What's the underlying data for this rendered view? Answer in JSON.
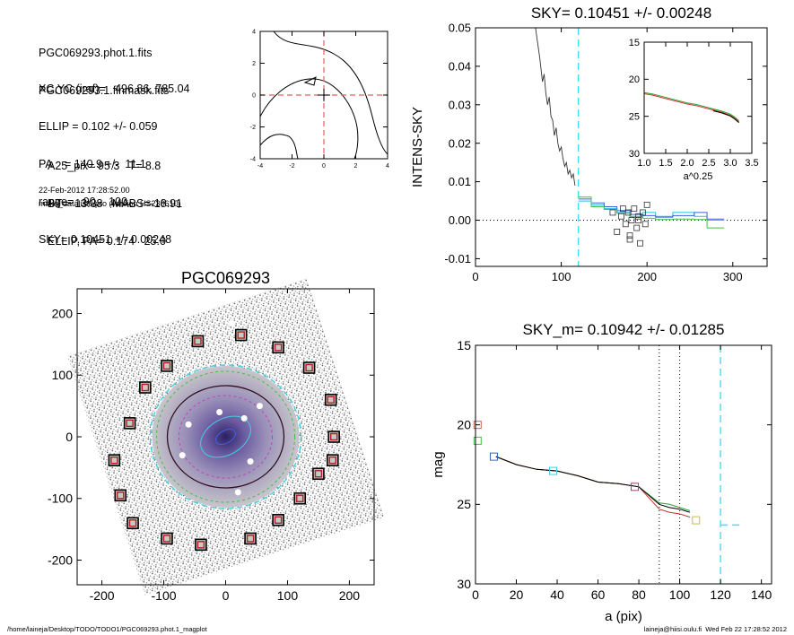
{
  "info": {
    "lines_a": [
      "PGC069293.phot.1.fits",
      "PGC069293.1.finmask.fits"
    ],
    "lines_b": [
      "XC,YC (iraf)=   496.86, 785.04",
      "ELLIP = 0.102 +/- 0.059",
      "PA    = 140.9 +/-  11.1",
      "range=   90.-  100.",
      "SKY= 0.10451 +/- 0.00248"
    ],
    "lines_c": [
      "A25_pix= 95.3   T= 8.8",
      "BT=  13.38   MABS=-18.91",
      "ELLIP, PA= 0.174   25.0"
    ],
    "date": "22-Feb-2012 17:28:52.00",
    "program": "make_datalist0.pro (version HS230610)"
  },
  "footer": {
    "left": "/home/laineja/Desktop/TODO/TODO1/PGC069293.phot.1_magplot",
    "right": "laineja@hiisi.oulu.fi  Wed Feb 22 17:28:52 2012"
  },
  "chart_data": [
    {
      "id": "center_contour",
      "type": "contour",
      "xlim": [
        -4,
        4
      ],
      "ylim": [
        -4,
        4
      ],
      "xticks": [
        -4,
        -2,
        0,
        2,
        4
      ],
      "yticks": [
        -4,
        -2,
        0,
        2,
        4
      ],
      "marker": [
        0,
        0
      ],
      "dashed_lines": {
        "x": 0,
        "y": 0,
        "color": "#e06060"
      }
    },
    {
      "id": "sky_profile",
      "type": "line",
      "title": "SKY= 0.10451 +/- 0.00248",
      "ylabel": "INTENS-SKY",
      "xlim": [
        0,
        340
      ],
      "ylim": [
        -0.012,
        0.05
      ],
      "xticks": [
        0,
        100,
        200,
        300
      ],
      "yticks": [
        -0.01,
        0.0,
        0.01,
        0.02,
        0.03,
        0.04,
        0.05
      ],
      "ytick_labels": [
        "-0.01",
        "0.00",
        "0.01",
        "0.02",
        "0.03",
        "0.04",
        "0.05"
      ],
      "vline_x": 120,
      "intensity": {
        "x": [
          70,
          75,
          78,
          80,
          82,
          84,
          86,
          88,
          90,
          92,
          94,
          96,
          98,
          100,
          102,
          104,
          106,
          108,
          110,
          112,
          114,
          116
        ],
        "y": [
          0.05,
          0.042,
          0.036,
          0.038,
          0.033,
          0.03,
          0.032,
          0.027,
          0.026,
          0.022,
          0.024,
          0.02,
          0.018,
          0.019,
          0.016,
          0.014,
          0.015,
          0.012,
          0.013,
          0.011,
          0.012,
          0.009
        ]
      },
      "steps": [
        {
          "color": "#20c0e0",
          "x": [
            120,
            135,
            135,
            150,
            150,
            165,
            165,
            180,
            180,
            195,
            195,
            210,
            210,
            230,
            230,
            255,
            255,
            270,
            270,
            290
          ],
          "y": [
            0.005,
            0.005,
            0.004,
            0.004,
            0.003,
            0.003,
            0.002,
            0.002,
            0.001,
            0.001,
            0.002,
            0.002,
            0.001,
            0.001,
            0.002,
            0.002,
            0.001,
            0.001,
            0.0,
            0.0
          ]
        },
        {
          "color": "#4060e0",
          "x": [
            120,
            135,
            135,
            150,
            150,
            165,
            165,
            180,
            180,
            195,
            195,
            210,
            210,
            230,
            230,
            255,
            255,
            270,
            270,
            290
          ],
          "y": [
            0.0055,
            0.0055,
            0.0045,
            0.0045,
            0.0035,
            0.0035,
            0.0025,
            0.0025,
            0.0015,
            0.0015,
            0.0012,
            0.0012,
            0.0008,
            0.0008,
            0.0012,
            0.0012,
            0.002,
            0.002,
            0.0003,
            0.0003
          ]
        },
        {
          "color": "#40c040",
          "x": [
            120,
            135,
            135,
            150,
            150,
            165,
            165,
            180,
            180,
            195,
            195,
            210,
            210,
            230,
            230,
            255,
            255,
            270,
            270,
            290
          ],
          "y": [
            0.006,
            0.006,
            0.0035,
            0.0035,
            0.0028,
            0.0028,
            0.0018,
            0.0018,
            0.0008,
            0.0008,
            0.0005,
            0.0005,
            0.0002,
            0.0002,
            0.0003,
            0.0003,
            0.0002,
            0.0002,
            -0.002,
            -0.002
          ]
        }
      ],
      "squares": {
        "x": [
          160,
          165,
          170,
          172,
          175,
          178,
          180,
          182,
          185,
          188,
          190,
          192,
          195,
          198,
          200,
          180,
          190
        ],
        "y": [
          0.002,
          -0.003,
          0.001,
          0.003,
          -0.001,
          0.002,
          -0.004,
          0.0,
          0.003,
          -0.002,
          0.001,
          -0.006,
          0.002,
          -0.001,
          0.004,
          -0.005,
          0.0
        ]
      },
      "inset": {
        "xlabel": "a^0.25",
        "xlim": [
          1.0,
          3.5
        ],
        "ylim": [
          30,
          15
        ],
        "xticks": [
          1.0,
          1.5,
          2.0,
          2.5,
          3.0,
          3.5
        ],
        "xtick_labels": [
          "1.0",
          "1.5",
          "2.0",
          "2.5",
          "3.0",
          "3.5"
        ],
        "yticks": [
          15,
          20,
          25,
          30
        ],
        "curve": {
          "x": [
            1.0,
            1.2,
            1.4,
            1.6,
            1.8,
            2.0,
            2.2,
            2.4,
            2.6,
            2.8,
            3.0,
            3.1,
            3.2
          ],
          "y": [
            21.8,
            22.0,
            22.3,
            22.6,
            22.9,
            23.2,
            23.4,
            23.7,
            24.0,
            24.3,
            24.7,
            25.1,
            25.6
          ]
        }
      }
    },
    {
      "id": "galaxy_image",
      "type": "image",
      "title": "PGC069293",
      "xlim": [
        -240,
        240
      ],
      "ylim": [
        -240,
        240
      ],
      "xticks": [
        -200,
        -100,
        0,
        100,
        200
      ],
      "yticks": [
        -200,
        -100,
        0,
        100,
        200
      ],
      "markers_xy": [
        [
          -45,
          155
        ],
        [
          25,
          165
        ],
        [
          85,
          145
        ],
        [
          135,
          112
        ],
        [
          170,
          60
        ],
        [
          175,
          0
        ],
        [
          173,
          -38
        ],
        [
          150,
          -60
        ],
        [
          120,
          -100
        ],
        [
          85,
          -135
        ],
        [
          40,
          -165
        ],
        [
          -40,
          -175
        ],
        [
          -95,
          -165
        ],
        [
          -150,
          -140
        ],
        [
          -170,
          -95
        ],
        [
          -180,
          -38
        ],
        [
          -155,
          22
        ],
        [
          -130,
          80
        ],
        [
          -95,
          115
        ]
      ]
    },
    {
      "id": "mag_profile",
      "type": "line",
      "title": "SKY_m=  0.10942 +/- 0.01285",
      "xlabel": "a (pix)",
      "ylabel": "mag",
      "xlim": [
        0,
        145
      ],
      "ylim": [
        30,
        15
      ],
      "xticks": [
        0,
        20,
        40,
        60,
        80,
        100,
        120,
        140
      ],
      "yticks": [
        15,
        20,
        25,
        30
      ],
      "vlines_dotted": [
        90,
        100
      ],
      "vline_dashed": 120,
      "dashed_segment": {
        "x": [
          120,
          130
        ],
        "y": 26.3
      },
      "series": [
        {
          "color": "#30a030",
          "x": [
            10,
            20,
            30,
            40,
            50,
            60,
            70,
            80,
            90,
            95,
            100,
            105
          ],
          "y": [
            22.0,
            22.5,
            22.8,
            22.9,
            23.2,
            23.6,
            23.7,
            23.9,
            24.9,
            25.0,
            25.2,
            25.4
          ]
        },
        {
          "color": "#c03030",
          "x": [
            10,
            20,
            30,
            40,
            50,
            60,
            70,
            80,
            90,
            95,
            100,
            105
          ],
          "y": [
            22.0,
            22.5,
            22.8,
            22.9,
            23.2,
            23.6,
            23.7,
            23.9,
            25.3,
            25.5,
            25.6,
            25.8
          ]
        },
        {
          "color": "#000000",
          "x": [
            10,
            20,
            30,
            40,
            50,
            60,
            70,
            80,
            90,
            95,
            100,
            105
          ],
          "y": [
            22.0,
            22.5,
            22.8,
            22.9,
            23.2,
            23.6,
            23.7,
            23.9,
            25.0,
            25.2,
            25.3,
            25.5
          ]
        }
      ],
      "squares": [
        {
          "x": 1,
          "y": 20.0,
          "color": "#d06040"
        },
        {
          "x": 1,
          "y": 21.0,
          "color": "#40c040"
        },
        {
          "x": 9,
          "y": 22.0,
          "color": "#4060d0"
        },
        {
          "x": 38,
          "y": 22.9,
          "color": "#40d0e0"
        },
        {
          "x": 78,
          "y": 23.9,
          "color": "#a04080"
        },
        {
          "x": 108,
          "y": 26.0,
          "color": "#c0c040"
        }
      ]
    }
  ]
}
